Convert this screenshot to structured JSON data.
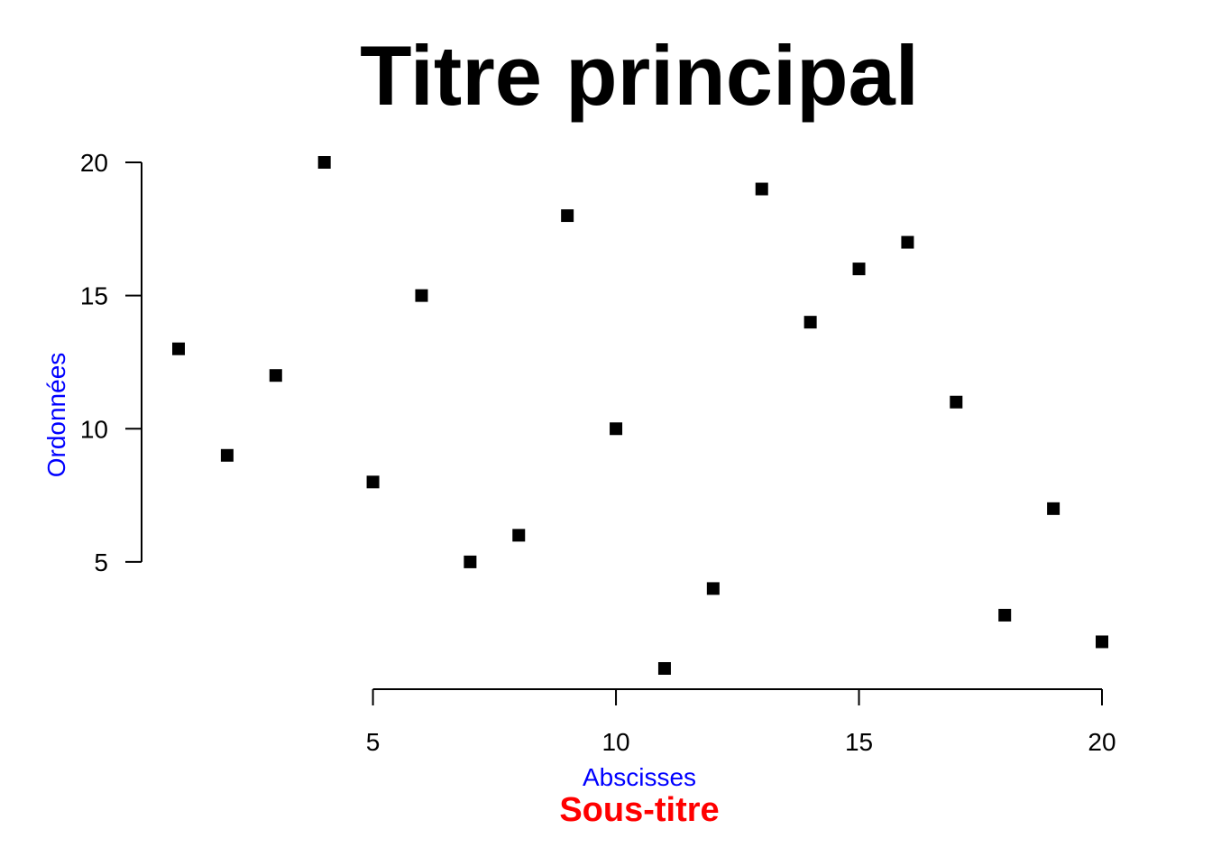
{
  "chart_data": {
    "type": "scatter",
    "title": "Titre principal",
    "subtitle": "Sous-titre",
    "xlabel": "Abscisses",
    "ylabel": "Ordonnées",
    "xlim": [
      1,
      20
    ],
    "ylim": [
      1,
      20
    ],
    "x_ticks": [
      5,
      10,
      15,
      20
    ],
    "y_ticks": [
      5,
      10,
      15,
      20
    ],
    "grid": false,
    "marker": "square",
    "series": [
      {
        "x": [
          1,
          2,
          3,
          4,
          5,
          6,
          7,
          8,
          9,
          10,
          11,
          12,
          13,
          14,
          15,
          16,
          17,
          18,
          19,
          20
        ],
        "y": [
          13,
          9,
          12,
          20,
          8,
          15,
          5,
          6,
          18,
          10,
          1,
          4,
          19,
          14,
          16,
          17,
          11,
          3,
          7,
          2
        ]
      }
    ],
    "colors": {
      "title": "#000000",
      "subtitle": "#ff0000",
      "axis_labels": "#0000ff",
      "points": "#000000"
    }
  }
}
